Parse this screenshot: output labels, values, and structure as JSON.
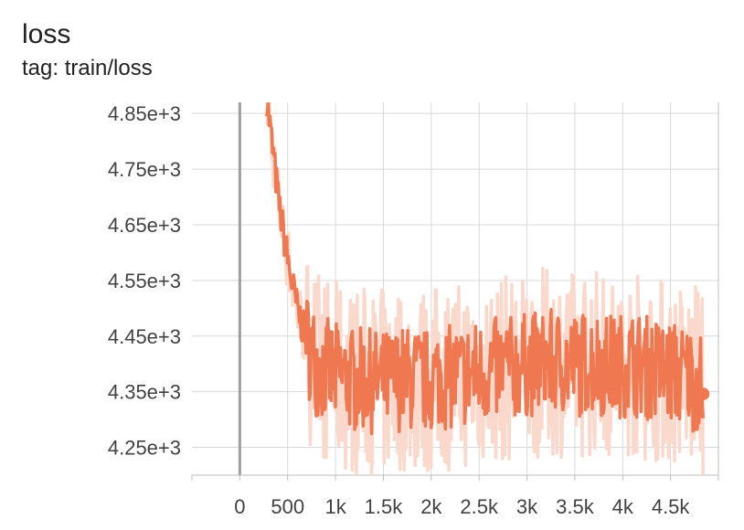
{
  "card": {
    "title": "loss",
    "subtitle": "tag: train/loss"
  },
  "colors": {
    "smoothed": "#f07850",
    "raw": "#fbd8cc",
    "grid": "#d9d9d9",
    "zero_axis": "#9e9e9e",
    "axis": "#bdbdbd"
  },
  "chart_data": {
    "type": "line",
    "title": "loss",
    "subtitle": "tag: train/loss",
    "xlabel": "",
    "ylabel": "",
    "xlim": [
      -500,
      5000
    ],
    "ylim": [
      4200,
      4870
    ],
    "x_ticks": [
      0,
      500,
      1000,
      1500,
      2000,
      2500,
      3000,
      3500,
      4000,
      4500
    ],
    "x_tick_labels": [
      "0",
      "500",
      "1k",
      "1.5k",
      "2k",
      "2.5k",
      "3k",
      "3.5k",
      "4k",
      "4.5k"
    ],
    "y_ticks": [
      4250,
      4350,
      4450,
      4550,
      4650,
      4750,
      4850
    ],
    "y_tick_labels": [
      "4.25e+3",
      "4.35e+3",
      "4.45e+3",
      "4.55e+3",
      "4.65e+3",
      "4.75e+3",
      "4.85e+3"
    ],
    "grid": true,
    "legend": "none",
    "series": [
      {
        "role": "smoothed",
        "x": [
          280,
          320,
          360,
          400,
          450,
          500,
          550,
          600,
          650,
          700,
          750,
          800,
          900,
          1000,
          1100,
          1200,
          1300,
          1400,
          1500,
          1600,
          1700,
          1800,
          1900,
          2000,
          2100,
          2200,
          2300,
          2400,
          2500,
          2600,
          2700,
          2800,
          2900,
          3000,
          3100,
          3200,
          3300,
          3400,
          3500,
          3600,
          3700,
          3800,
          3900,
          4000,
          4100,
          4200,
          4300,
          4400,
          4500,
          4600,
          4700,
          4800,
          4840
        ],
        "y": [
          4880,
          4820,
          4760,
          4700,
          4640,
          4590,
          4540,
          4500,
          4470,
          4440,
          4420,
          4400,
          4390,
          4380,
          4375,
          4370,
          4372,
          4368,
          4365,
          4370,
          4375,
          4372,
          4368,
          4370,
          4380,
          4375,
          4378,
          4382,
          4385,
          4388,
          4390,
          4392,
          4395,
          4398,
          4400,
          4402,
          4405,
          4400,
          4398,
          4402,
          4405,
          4400,
          4395,
          4398,
          4400,
          4396,
          4392,
          4388,
          4385,
          4380,
          4376,
          4370,
          4346
        ]
      }
    ],
    "last_point": {
      "x": 4840,
      "y": 4346
    }
  }
}
